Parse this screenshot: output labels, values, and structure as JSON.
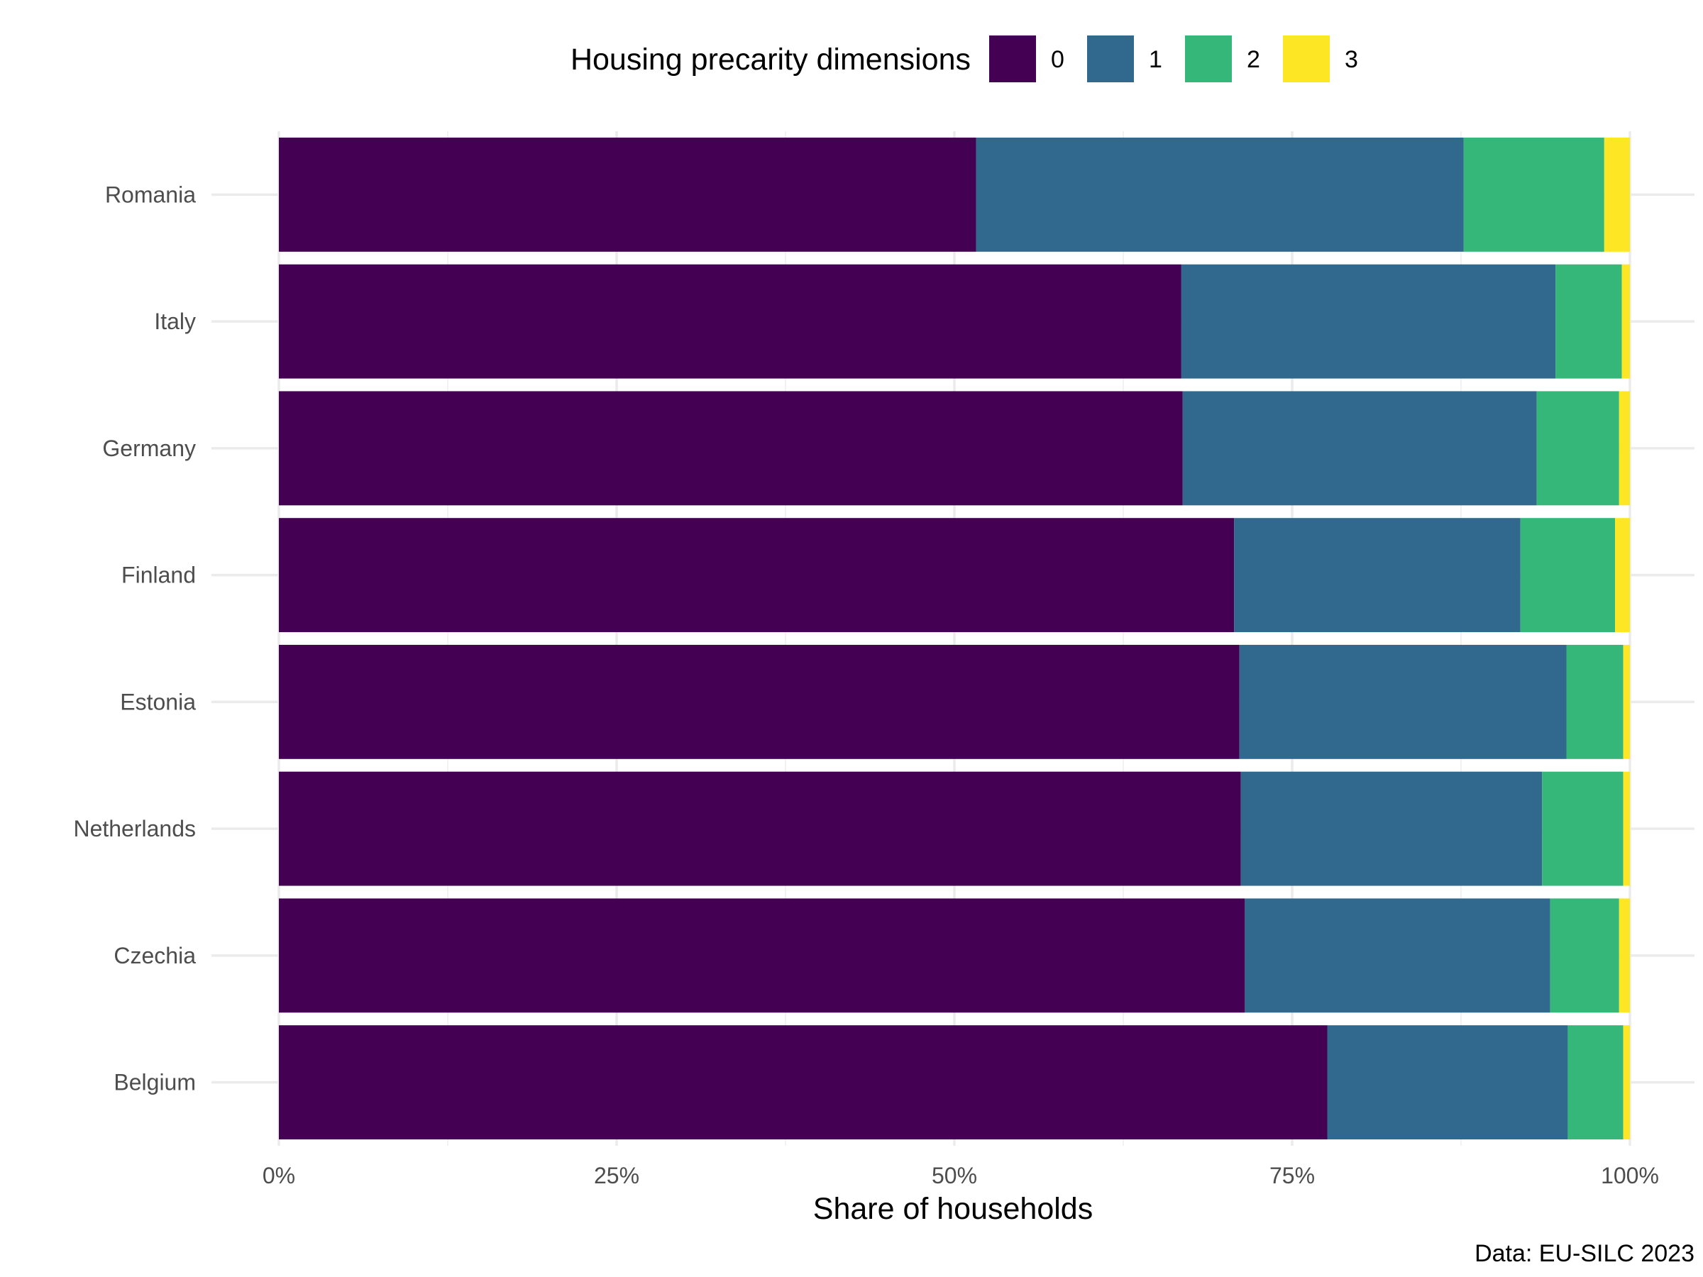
{
  "chart_data": {
    "type": "bar",
    "orientation": "horizontal",
    "stacked": true,
    "xlabel": "Share of households",
    "ylabel": "",
    "caption": "Data: EU-SILC 2023",
    "xlim": [
      0,
      100
    ],
    "x_ticks": [
      "0%",
      "25%",
      "50%",
      "75%",
      "100%"
    ],
    "x_tick_values": [
      0,
      25,
      50,
      75,
      100
    ],
    "grid": true,
    "legend": {
      "title": "Housing precarity dimensions",
      "position": "top"
    },
    "categories": [
      "Romania",
      "Italy",
      "Germany",
      "Finland",
      "Estonia",
      "Netherlands",
      "Czechia",
      "Belgium"
    ],
    "series": [
      {
        "name": "0",
        "color": "#440154",
        "values": [
          51.6,
          66.8,
          66.9,
          70.7,
          71.1,
          71.2,
          71.5,
          77.6
        ]
      },
      {
        "name": "1",
        "color": "#31688e",
        "values": [
          36.1,
          27.7,
          26.2,
          21.2,
          24.2,
          22.3,
          22.6,
          17.8
        ]
      },
      {
        "name": "2",
        "color": "#35b779",
        "values": [
          10.4,
          4.9,
          6.1,
          7.0,
          4.2,
          6.0,
          5.1,
          4.1
        ]
      },
      {
        "name": "3",
        "color": "#fde725",
        "values": [
          1.9,
          0.6,
          0.8,
          1.1,
          0.5,
          0.5,
          0.8,
          0.5
        ]
      }
    ]
  }
}
